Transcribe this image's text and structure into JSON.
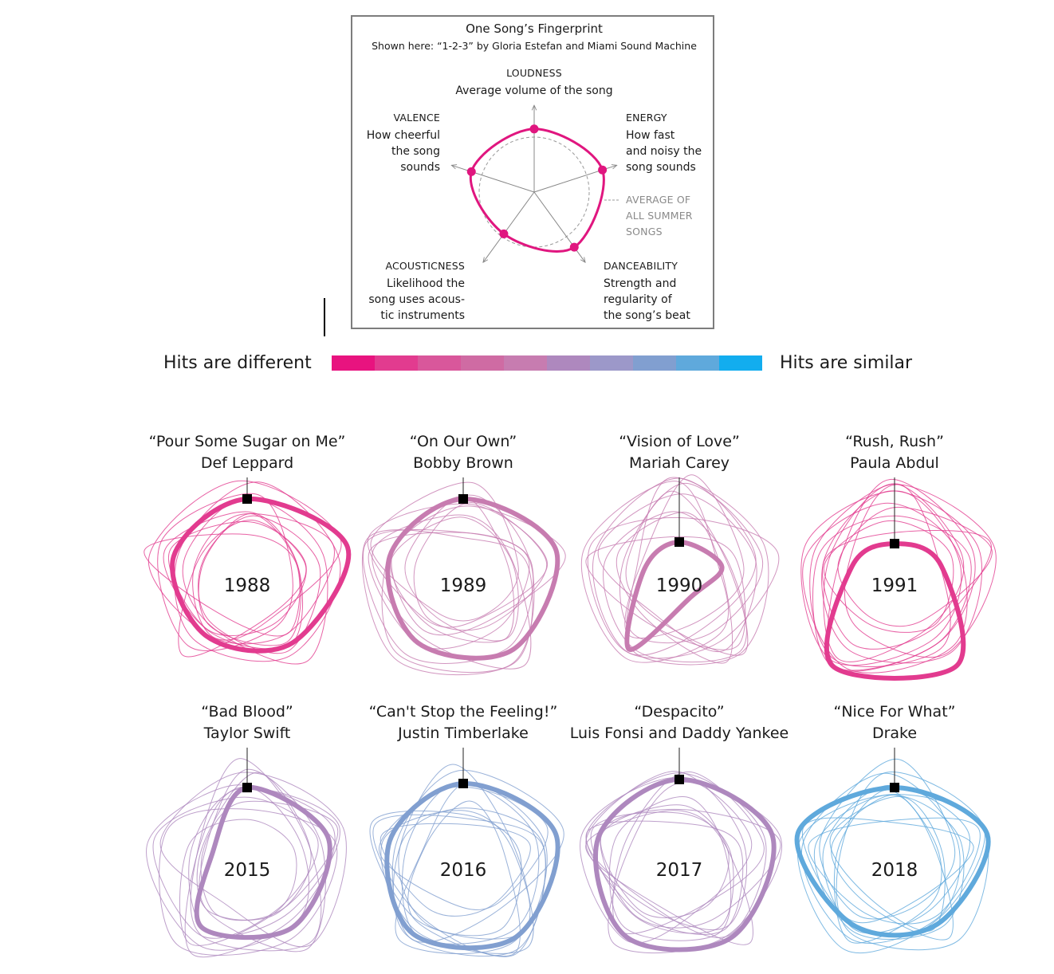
{
  "legend": {
    "title": "One Song’s Fingerprint",
    "subtitle": "Shown here: “1-2-3” by Gloria Estefan and Miami Sound Machine",
    "loudness_cap": "LOUDNESS",
    "loudness_desc": "Average volume of the song",
    "energy_cap": "ENERGY",
    "energy_desc": "How fast\nand noisy the\nsong sounds",
    "valence_cap": "VALENCE",
    "valence_desc": "How cheerful\nthe song\nsounds",
    "acoustic_cap": "ACOUSTICNESS",
    "acoustic_desc": "Likelihood the\nsong uses acous-\ntic instruments",
    "dance_cap": "DANCEABILITY",
    "dance_desc": "Strength and\nregularity of\nthe song’s beat",
    "average_label": "AVERAGE OF\nALL SUMMER\nSONGS",
    "accent_color": "#e0167f",
    "example_values": {
      "loudness": 0.88,
      "energy": 1.0,
      "danceability": 0.95,
      "acousticness": 0.72,
      "valence": 0.92
    }
  },
  "scale": {
    "left_label": "Hits are different",
    "right_label": "Hits are similar",
    "colors": [
      "#e8137f",
      "#e23b8f",
      "#d9579b",
      "#cf6ba3",
      "#c77cb0",
      "#ae88be",
      "#9c98c9",
      "#819fd0",
      "#5fa9dc",
      "#12adef"
    ]
  },
  "chart_data": {
    "type": "radar",
    "axes": [
      "loudness",
      "energy",
      "danceability",
      "acousticness",
      "valence"
    ],
    "charts": [
      {
        "year": "1988",
        "song": "“Pour Some Sugar on Me”",
        "artist": "Def Leppard",
        "color": "#e23b8f",
        "highlight": [
          1.0,
          1.3,
          0.95,
          0.85,
          0.95
        ]
      },
      {
        "year": "1989",
        "song": "“On Our Own”",
        "artist": "Bobby Brown",
        "color": "#c77cb0",
        "highlight": [
          1.0,
          1.2,
          1.05,
          0.95,
          0.95
        ]
      },
      {
        "year": "1990",
        "song": "“Vision of Love”",
        "artist": "Mariah Carey",
        "color": "#c77cb0",
        "highlight": [
          0.47,
          0.55,
          0.25,
          1.05,
          0.45
        ]
      },
      {
        "year": "1991",
        "song": "“Rush, Rush”",
        "artist": "Paula Abdul",
        "color": "#e23b8f",
        "highlight": [
          0.45,
          0.6,
          1.3,
          1.3,
          0.55
        ]
      },
      {
        "year": "2015",
        "song": "“Bad Blood”",
        "artist": "Taylor Swift",
        "color": "#ae88be",
        "highlight": [
          0.95,
          1.05,
          0.95,
          0.95,
          0.45
        ]
      },
      {
        "year": "2016",
        "song": "“Can't Stop the Feeling!”",
        "artist": "Justin Timberlake",
        "color": "#819fd0",
        "highlight": [
          1.0,
          1.2,
          1.1,
          1.05,
          0.95
        ]
      },
      {
        "year": "2017",
        "song": "“Despacito”",
        "artist": "Luis Fonsi and Daddy Yankee",
        "color": "#ae88be",
        "highlight": [
          1.05,
          1.2,
          1.1,
          1.1,
          1.05
        ]
      },
      {
        "year": "2018",
        "song": "“Nice For What”",
        "artist": "Drake",
        "color": "#5fa9dc",
        "highlight": [
          0.95,
          1.2,
          0.9,
          0.9,
          1.25
        ]
      }
    ]
  }
}
